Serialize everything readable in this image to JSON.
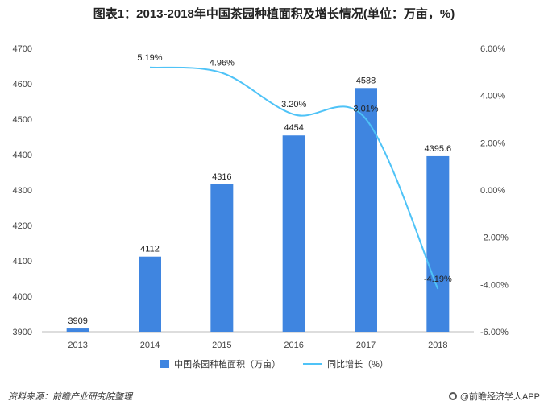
{
  "chart_data": {
    "type": "bar",
    "title": "图表1：2013-2018年中国茶园种植面积及增长情况(单位：万亩，%)",
    "categories": [
      "2013",
      "2014",
      "2015",
      "2016",
      "2017",
      "2018"
    ],
    "series": [
      {
        "name": "中国茶园种植面积（万亩）",
        "type": "bar",
        "axis": "left",
        "values": [
          3909,
          4112,
          4316,
          4454,
          4588,
          4395.6
        ],
        "labels": [
          "3909",
          "4112",
          "4316",
          "4454",
          "4588",
          "4395.6"
        ],
        "color": "#3f85e0"
      },
      {
        "name": "同比增长（%）",
        "type": "line",
        "axis": "right",
        "x": [
          "2014",
          "2015",
          "2016",
          "2017",
          "2018"
        ],
        "values": [
          5.19,
          4.96,
          3.2,
          3.01,
          -4.19
        ],
        "labels": [
          "5.19%",
          "4.96%",
          "3.20%",
          "3.01%",
          "-4.19%"
        ],
        "color": "#4fc3f7"
      }
    ],
    "left_axis": {
      "ylim": [
        3900,
        4700
      ],
      "ticks": [
        "3900",
        "4000",
        "4100",
        "4200",
        "4300",
        "4400",
        "4500",
        "4600",
        "4700"
      ]
    },
    "right_axis": {
      "ylim": [
        -6,
        6
      ],
      "ticks": [
        "-6.00%",
        "-4.00%",
        "-2.00%",
        "0.00%",
        "2.00%",
        "4.00%",
        "6.00%"
      ]
    },
    "grid": false,
    "legend": "bottom"
  },
  "footer": {
    "source": "资料来源：前瞻产业研究院整理",
    "brand": "@前瞻经济学人APP"
  }
}
